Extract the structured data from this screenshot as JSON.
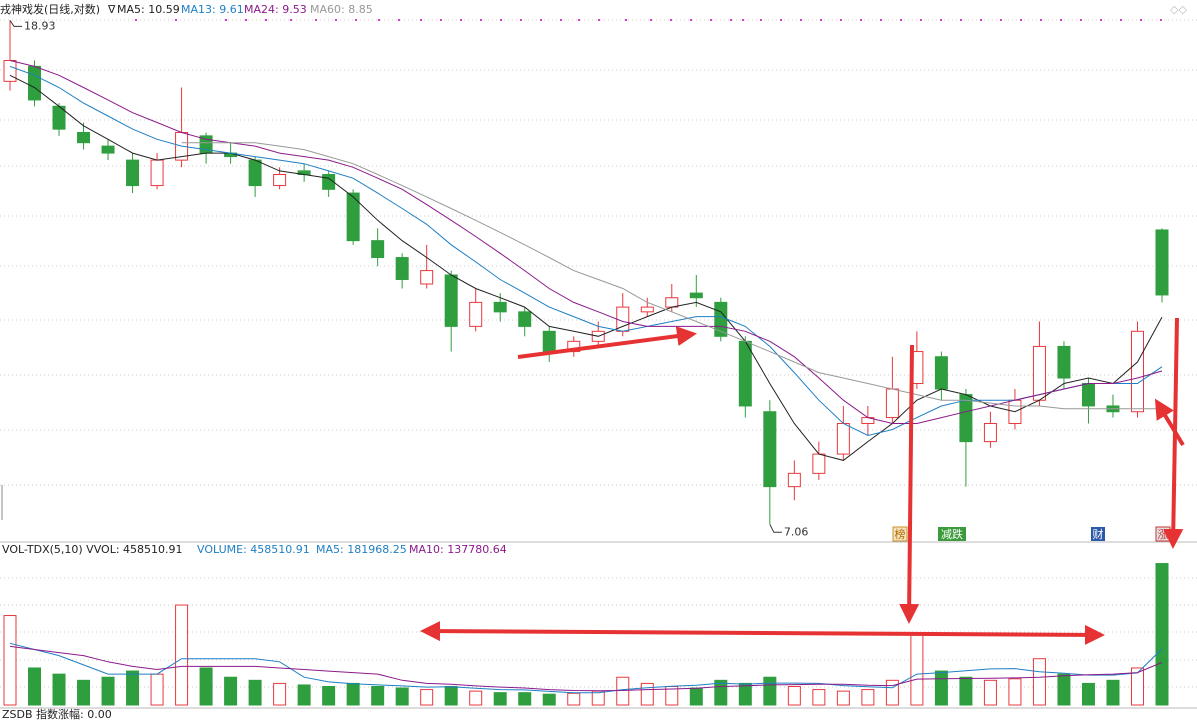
{
  "chart_data": [
    {
      "type": "candlestick",
      "title": "戎神戏发(日线,对数)",
      "ylim": [
        6.9,
        19.7
      ],
      "log_scale": true,
      "up_color": "#e8383d",
      "down_color": "#2f9e3f",
      "candles": [
        [
          16.8,
          18.93,
          16.5,
          17.5
        ],
        [
          17.3,
          17.5,
          16.0,
          16.2
        ],
        [
          16.0,
          16.1,
          15.1,
          15.3
        ],
        [
          15.2,
          15.5,
          14.7,
          14.9
        ],
        [
          14.8,
          15.0,
          14.4,
          14.6
        ],
        [
          14.4,
          14.6,
          13.5,
          13.7
        ],
        [
          13.7,
          14.6,
          13.6,
          14.4
        ],
        [
          14.4,
          16.6,
          14.2,
          15.2
        ],
        [
          15.1,
          15.2,
          14.3,
          14.6
        ],
        [
          14.6,
          14.9,
          14.3,
          14.5
        ],
        [
          14.4,
          14.5,
          13.4,
          13.7
        ],
        [
          13.7,
          14.2,
          13.6,
          14.0
        ],
        [
          14.1,
          14.3,
          13.8,
          14.0
        ],
        [
          14.0,
          14.1,
          13.4,
          13.6
        ],
        [
          13.5,
          13.6,
          12.2,
          12.3
        ],
        [
          12.3,
          12.6,
          11.7,
          11.9
        ],
        [
          11.9,
          12.0,
          11.2,
          11.4
        ],
        [
          11.3,
          12.2,
          11.2,
          11.6
        ],
        [
          11.5,
          11.6,
          9.9,
          10.4
        ],
        [
          10.4,
          11.2,
          10.3,
          10.9
        ],
        [
          10.9,
          11.1,
          10.5,
          10.7
        ],
        [
          10.7,
          10.8,
          10.2,
          10.4
        ],
        [
          10.3,
          10.4,
          9.7,
          9.9
        ],
        [
          9.9,
          10.2,
          9.8,
          10.1
        ],
        [
          10.1,
          10.5,
          10.0,
          10.3
        ],
        [
          10.3,
          11.1,
          10.2,
          10.8
        ],
        [
          10.7,
          11.0,
          10.6,
          10.8
        ],
        [
          10.8,
          11.3,
          10.7,
          11.0
        ],
        [
          11.1,
          11.5,
          10.8,
          11.0
        ],
        [
          10.9,
          11.0,
          10.1,
          10.2
        ],
        [
          10.1,
          10.2,
          8.7,
          8.9
        ],
        [
          8.8,
          9.0,
          7.06,
          7.6
        ],
        [
          7.6,
          8.0,
          7.4,
          7.8
        ],
        [
          7.8,
          8.3,
          7.7,
          8.1
        ],
        [
          8.1,
          8.9,
          8.0,
          8.6
        ],
        [
          8.6,
          8.9,
          8.4,
          8.7
        ],
        [
          8.7,
          9.8,
          8.6,
          9.2
        ],
        [
          9.3,
          10.3,
          9.2,
          9.9
        ],
        [
          9.8,
          9.9,
          9.0,
          9.2
        ],
        [
          9.1,
          9.2,
          7.6,
          8.3
        ],
        [
          8.3,
          8.8,
          8.2,
          8.6
        ],
        [
          8.6,
          9.2,
          8.5,
          9.0
        ],
        [
          9.0,
          10.5,
          8.9,
          10.0
        ],
        [
          10.0,
          10.1,
          9.2,
          9.4
        ],
        [
          9.3,
          9.4,
          8.6,
          8.9
        ],
        [
          8.9,
          9.1,
          8.7,
          8.8
        ],
        [
          8.8,
          10.5,
          8.7,
          10.3
        ],
        [
          12.56,
          12.6,
          10.9,
          11.06
        ]
      ],
      "series": [
        {
          "name": "MA5: 10.59",
          "color": "#222222",
          "values": [
            17.0,
            16.6,
            16.0,
            15.4,
            15.0,
            14.6,
            14.4,
            14.5,
            14.6,
            14.6,
            14.4,
            14.1,
            14.0,
            13.9,
            13.4,
            12.8,
            12.3,
            11.9,
            11.5,
            11.2,
            11.0,
            10.8,
            10.4,
            10.3,
            10.2,
            10.4,
            10.6,
            10.8,
            10.9,
            10.7,
            10.1,
            9.3,
            8.6,
            8.1,
            8.0,
            8.3,
            8.6,
            9.0,
            9.2,
            9.1,
            8.9,
            8.8,
            9.0,
            9.3,
            9.4,
            9.3,
            9.7,
            10.59
          ]
        },
        {
          "name": "MA13: 9.61",
          "color": "#1e7fc4",
          "values": [
            17.3,
            17.0,
            16.6,
            16.1,
            15.7,
            15.3,
            15.0,
            14.8,
            14.7,
            14.6,
            14.5,
            14.4,
            14.3,
            14.1,
            13.9,
            13.5,
            13.1,
            12.7,
            12.2,
            11.8,
            11.4,
            11.1,
            10.8,
            10.6,
            10.4,
            10.3,
            10.4,
            10.5,
            10.6,
            10.6,
            10.4,
            10.0,
            9.5,
            9.0,
            8.6,
            8.4,
            8.5,
            8.7,
            8.9,
            9.0,
            9.0,
            9.0,
            9.1,
            9.2,
            9.3,
            9.3,
            9.3,
            9.61
          ]
        },
        {
          "name": "MA24: 9.53",
          "color": "#8b1a8b",
          "values": [
            17.5,
            17.3,
            17.0,
            16.6,
            16.2,
            15.8,
            15.5,
            15.2,
            15.0,
            14.9,
            14.8,
            14.6,
            14.5,
            14.4,
            14.2,
            13.9,
            13.6,
            13.2,
            12.8,
            12.4,
            12.0,
            11.6,
            11.2,
            10.9,
            10.7,
            10.5,
            10.4,
            10.4,
            10.4,
            10.4,
            10.3,
            10.1,
            9.8,
            9.4,
            9.0,
            8.7,
            8.6,
            8.6,
            8.7,
            8.8,
            8.9,
            9.0,
            9.1,
            9.2,
            9.3,
            9.3,
            9.4,
            9.53
          ]
        },
        {
          "name": "MA60: 8.85",
          "color": "#999999",
          "values": [
            null,
            null,
            null,
            null,
            null,
            null,
            null,
            14.9,
            14.9,
            14.9,
            14.9,
            14.8,
            14.7,
            14.5,
            14.3,
            14.0,
            13.7,
            13.4,
            13.1,
            12.8,
            12.5,
            12.2,
            11.9,
            11.6,
            11.4,
            11.2,
            10.9,
            10.7,
            10.5,
            10.3,
            10.1,
            9.9,
            9.7,
            9.5,
            9.4,
            9.3,
            9.2,
            9.1,
            9.0,
            9.0,
            8.95,
            8.9,
            8.9,
            8.85,
            8.85,
            8.85,
            8.85,
            8.85
          ]
        }
      ],
      "annotations": [
        {
          "text": "18.93",
          "value": 18.93
        },
        {
          "text": "7.06",
          "value": 7.06
        }
      ],
      "markers": [
        "榜",
        "减跌",
        "财",
        "涨"
      ]
    },
    {
      "type": "volume",
      "title": "VOL-TDX(5,10) VVOL: 458510.91",
      "ylim": [
        0,
        470000
      ],
      "values": [
        290000,
        120000,
        100000,
        80000,
        90000,
        110000,
        100000,
        324000,
        120000,
        90000,
        80000,
        70000,
        65000,
        60000,
        70000,
        60000,
        55000,
        50000,
        60000,
        45000,
        40000,
        40000,
        35000,
        38000,
        45000,
        90000,
        70000,
        60000,
        55000,
        80000,
        70000,
        90000,
        60000,
        50000,
        45000,
        50000,
        80000,
        227000,
        110000,
        90000,
        80000,
        85000,
        150000,
        100000,
        70000,
        80000,
        120000,
        458510.91
      ],
      "legend_volume": "VOLUME: 458510.91",
      "series": [
        {
          "name": "MA5: 181968.25",
          "color": "#1e7fc4",
          "values": [
            200000,
            180000,
            160000,
            130000,
            100000,
            100000,
            100000,
            150000,
            150000,
            150000,
            150000,
            140000,
            90000,
            75000,
            69000,
            65000,
            62000,
            58000,
            59000,
            54000,
            50000,
            49000,
            44000,
            40000,
            40000,
            50000,
            56000,
            61000,
            64000,
            71000,
            67000,
            71000,
            71000,
            70000,
            63000,
            59000,
            56000,
            100000,
            105000,
            111000,
            117000,
            118000,
            108000,
            103000,
            97000,
            97000,
            104000,
            181968.25
          ]
        },
        {
          "name": "MA10: 137780.64",
          "color": "#8b1a8b",
          "values": [
            190000,
            180000,
            170000,
            160000,
            140000,
            125000,
            115000,
            125000,
            125000,
            125000,
            125000,
            120000,
            115000,
            110000,
            105000,
            100000,
            80000,
            70000,
            67000,
            62000,
            58000,
            55000,
            50000,
            47000,
            46000,
            47000,
            50000,
            52000,
            54000,
            60000,
            62000,
            65000,
            66000,
            67000,
            67000,
            64000,
            63000,
            84000,
            85000,
            86000,
            87000,
            88000,
            90000,
            95000,
            98000,
            100000,
            105000,
            137780.64
          ]
        }
      ]
    },
    {
      "type": "footer",
      "title": "ZSDB 指数涨幅: 0.00"
    }
  ]
}
